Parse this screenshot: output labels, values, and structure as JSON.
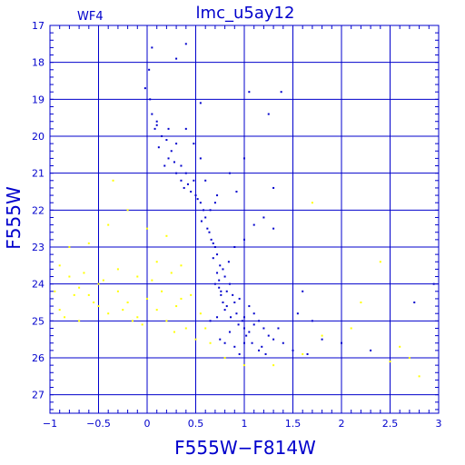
{
  "chart_data": {
    "type": "scatter",
    "title": "lmc_u5ay12",
    "subtitle": "WF4",
    "xlabel": "F555W−F814W",
    "ylabel": "F555W",
    "xlim": [
      -1,
      3
    ],
    "ylim": [
      27.5,
      17
    ],
    "y_inverted": true,
    "grid": true,
    "xticks": [
      -1,
      -0.5,
      0,
      0.5,
      1,
      1.5,
      2,
      2.5,
      3
    ],
    "xtick_labels": [
      "−1",
      "−0.5",
      "0",
      "0.5",
      "1",
      "1.5",
      "2",
      "2.5",
      "3"
    ],
    "yticks": [
      17,
      18,
      19,
      20,
      21,
      22,
      23,
      24,
      25,
      26,
      27
    ],
    "ytick_labels": [
      "17",
      "18",
      "19",
      "20",
      "21",
      "22",
      "23",
      "24",
      "25",
      "26",
      "27"
    ],
    "colors": {
      "axes": "#0000cc",
      "grid": "#0000cc",
      "stars": "#0000cc",
      "field": "#ffff00"
    },
    "series": [
      {
        "color": "#0000cc",
        "points": [
          [
            0.05,
            17.6
          ],
          [
            0.4,
            17.5
          ],
          [
            0.3,
            17.9
          ],
          [
            0.02,
            18.2
          ],
          [
            -0.02,
            18.7
          ],
          [
            0.55,
            19.1
          ],
          [
            1.05,
            18.8
          ],
          [
            1.38,
            18.8
          ],
          [
            1.25,
            19.4
          ],
          [
            0.03,
            19.0
          ],
          [
            0.05,
            19.4
          ],
          [
            0.08,
            19.8
          ],
          [
            0.1,
            19.6
          ],
          [
            0.15,
            20.0
          ],
          [
            0.12,
            20.3
          ],
          [
            0.2,
            20.1
          ],
          [
            0.25,
            20.4
          ],
          [
            0.22,
            20.6
          ],
          [
            0.18,
            20.8
          ],
          [
            0.28,
            20.7
          ],
          [
            0.3,
            21.0
          ],
          [
            0.35,
            21.2
          ],
          [
            0.4,
            21.0
          ],
          [
            0.38,
            21.4
          ],
          [
            0.45,
            21.5
          ],
          [
            0.48,
            21.2
          ],
          [
            0.5,
            21.6
          ],
          [
            0.55,
            21.8
          ],
          [
            0.58,
            22.0
          ],
          [
            0.6,
            22.2
          ],
          [
            0.65,
            22.0
          ],
          [
            0.7,
            21.8
          ],
          [
            0.62,
            22.5
          ],
          [
            0.66,
            22.8
          ],
          [
            0.7,
            23.0
          ],
          [
            0.68,
            23.3
          ],
          [
            0.72,
            23.2
          ],
          [
            0.75,
            23.5
          ],
          [
            0.78,
            23.6
          ],
          [
            0.8,
            23.8
          ],
          [
            0.72,
            23.7
          ],
          [
            0.7,
            24.0
          ],
          [
            0.74,
            24.1
          ],
          [
            0.82,
            24.2
          ],
          [
            0.85,
            24.0
          ],
          [
            0.88,
            24.3
          ],
          [
            0.9,
            24.5
          ],
          [
            0.95,
            24.4
          ],
          [
            0.78,
            24.5
          ],
          [
            0.8,
            24.7
          ],
          [
            0.92,
            24.8
          ],
          [
            1.0,
            24.9
          ],
          [
            1.05,
            24.6
          ],
          [
            1.1,
            24.8
          ],
          [
            0.98,
            25.0
          ],
          [
            1.0,
            25.2
          ],
          [
            1.05,
            25.3
          ],
          [
            1.1,
            25.1
          ],
          [
            1.15,
            25.0
          ],
          [
            1.2,
            25.2
          ],
          [
            1.25,
            25.4
          ],
          [
            0.85,
            25.3
          ],
          [
            0.75,
            25.5
          ],
          [
            0.8,
            25.6
          ],
          [
            0.9,
            25.7
          ],
          [
            1.0,
            25.6
          ],
          [
            1.3,
            25.5
          ],
          [
            1.4,
            25.6
          ],
          [
            1.5,
            25.8
          ],
          [
            1.35,
            25.2
          ],
          [
            0.95,
            25.9
          ],
          [
            1.15,
            25.8
          ],
          [
            0.65,
            25.0
          ],
          [
            0.72,
            24.9
          ],
          [
            0.76,
            24.3
          ],
          [
            0.84,
            23.4
          ],
          [
            0.9,
            23.0
          ],
          [
            1.0,
            22.8
          ],
          [
            1.1,
            22.4
          ],
          [
            1.2,
            22.2
          ],
          [
            1.3,
            22.5
          ],
          [
            0.6,
            21.2
          ],
          [
            0.72,
            21.6
          ],
          [
            0.85,
            21.0
          ],
          [
            0.92,
            21.5
          ],
          [
            1.0,
            20.6
          ],
          [
            1.3,
            21.4
          ],
          [
            0.4,
            19.8
          ],
          [
            0.48,
            20.2
          ],
          [
            0.55,
            20.6
          ],
          [
            2.75,
            24.5
          ],
          [
            2.95,
            24.0
          ],
          [
            1.6,
            24.2
          ],
          [
            1.55,
            24.8
          ],
          [
            1.7,
            25.0
          ],
          [
            1.8,
            25.5
          ],
          [
            1.65,
            25.9
          ],
          [
            2.0,
            25.6
          ],
          [
            2.3,
            25.8
          ],
          [
            0.22,
            19.8
          ],
          [
            0.3,
            20.2
          ],
          [
            0.1,
            19.7
          ],
          [
            0.35,
            20.8
          ],
          [
            0.42,
            21.3
          ],
          [
            0.52,
            21.7
          ],
          [
            0.56,
            22.3
          ],
          [
            0.64,
            22.6
          ],
          [
            0.68,
            22.9
          ],
          [
            0.74,
            23.9
          ],
          [
            0.76,
            24.2
          ],
          [
            0.82,
            24.6
          ],
          [
            0.86,
            24.9
          ],
          [
            0.94,
            25.1
          ],
          [
            1.02,
            25.4
          ],
          [
            1.08,
            25.6
          ],
          [
            1.18,
            25.7
          ],
          [
            1.22,
            25.9
          ]
        ]
      },
      {
        "color": "#ffff00",
        "points": [
          [
            -0.9,
            23.5
          ],
          [
            -0.8,
            23.8
          ],
          [
            -0.7,
            24.1
          ],
          [
            -0.6,
            24.3
          ],
          [
            -0.5,
            24.6
          ],
          [
            -0.4,
            24.8
          ],
          [
            -0.3,
            24.2
          ],
          [
            -0.2,
            24.5
          ],
          [
            -0.1,
            24.9
          ],
          [
            0.0,
            24.4
          ],
          [
            0.1,
            24.7
          ],
          [
            0.2,
            25.0
          ],
          [
            0.3,
            24.6
          ],
          [
            0.4,
            25.2
          ],
          [
            0.5,
            25.5
          ],
          [
            -0.9,
            24.7
          ],
          [
            -0.7,
            25.0
          ],
          [
            -0.5,
            24.0
          ],
          [
            -0.3,
            23.6
          ],
          [
            -0.1,
            23.8
          ],
          [
            0.1,
            23.4
          ],
          [
            -0.8,
            23.0
          ],
          [
            -0.6,
            22.9
          ],
          [
            -0.4,
            22.4
          ],
          [
            -0.2,
            22.0
          ],
          [
            -0.35,
            21.2
          ],
          [
            0.2,
            22.7
          ],
          [
            0.35,
            23.5
          ],
          [
            0.45,
            24.3
          ],
          [
            0.55,
            24.8
          ],
          [
            0.6,
            25.2
          ],
          [
            0.65,
            25.6
          ],
          [
            0.8,
            26.0
          ],
          [
            1.0,
            26.2
          ],
          [
            1.3,
            26.2
          ],
          [
            1.6,
            25.9
          ],
          [
            1.8,
            25.4
          ],
          [
            2.1,
            25.2
          ],
          [
            2.2,
            24.5
          ],
          [
            2.4,
            23.4
          ],
          [
            2.6,
            25.7
          ],
          [
            2.7,
            26.0
          ],
          [
            2.8,
            26.5
          ],
          [
            2.5,
            26.1
          ],
          [
            -0.95,
            24.2
          ],
          [
            -0.85,
            24.9
          ],
          [
            -0.65,
            23.7
          ],
          [
            -0.45,
            23.9
          ],
          [
            -0.25,
            24.7
          ],
          [
            -0.05,
            25.1
          ],
          [
            0.05,
            23.9
          ],
          [
            0.15,
            24.2
          ],
          [
            0.25,
            23.7
          ],
          [
            0.35,
            24.4
          ],
          [
            1.7,
            21.8
          ],
          [
            0.0,
            22.5
          ],
          [
            -0.15,
            25.0
          ],
          [
            0.28,
            25.3
          ],
          [
            -0.55,
            24.5
          ],
          [
            -0.75,
            24.3
          ]
        ]
      }
    ]
  }
}
